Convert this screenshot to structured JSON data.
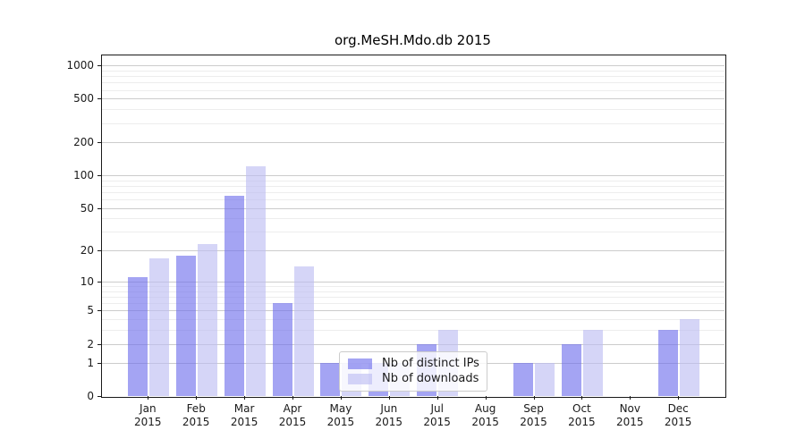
{
  "chart_data": {
    "type": "bar",
    "title": "org.MeSH.Mdo.db 2015",
    "categories": [
      "Jan",
      "Feb",
      "Mar",
      "Apr",
      "May",
      "Jun",
      "Jul",
      "Aug",
      "Sep",
      "Oct",
      "Nov",
      "Dec"
    ],
    "x_year_label": "2015",
    "series": [
      {
        "name": "Nb of distinct IPs",
        "values": [
          11,
          18,
          65,
          6,
          1,
          1,
          2,
          0,
          1,
          2,
          0,
          3
        ],
        "color": "#6c6cec",
        "fill_opacity": 0.62,
        "blended_color": "#a4a4f3"
      },
      {
        "name": "Nb of downloads",
        "values": [
          17,
          23,
          122,
          14,
          1,
          1,
          3,
          0,
          1,
          3,
          0,
          4
        ],
        "color": "#bcbcf2",
        "fill_opacity": 0.62,
        "blended_color": "#d5d5f7"
      }
    ],
    "y_scale": "log10(1+value)",
    "y_ticks": [
      0,
      1,
      2,
      5,
      10,
      20,
      50,
      100,
      200,
      500,
      1000
    ],
    "y_minor_ticks": [
      3,
      4,
      6,
      7,
      8,
      9,
      30,
      40,
      60,
      70,
      80,
      90,
      300,
      400,
      600,
      700,
      800,
      900
    ],
    "ylim": [
      0,
      1250
    ],
    "grid": true,
    "legend_position": "lower-center-inside",
    "colors": {
      "major_gridline": "#cccccc",
      "minor_gridline": "#ededed",
      "axis": "#1a1a1a",
      "legend_border": "#cccccc"
    }
  }
}
